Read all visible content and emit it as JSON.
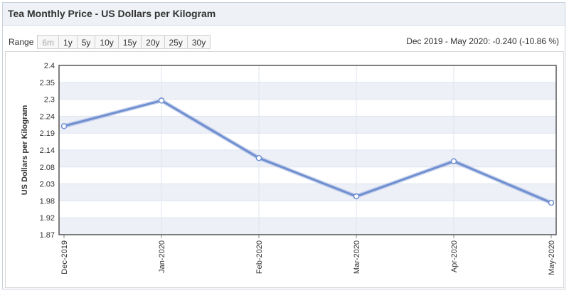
{
  "header": {
    "title": "Tea Monthly Price - US Dollars per Kilogram"
  },
  "range": {
    "label": "Range",
    "buttons": [
      {
        "label": "6m",
        "disabled": true
      },
      {
        "label": "1y",
        "disabled": false
      },
      {
        "label": "5y",
        "disabled": false
      },
      {
        "label": "10y",
        "disabled": false
      },
      {
        "label": "15y",
        "disabled": false
      },
      {
        "label": "20y",
        "disabled": false
      },
      {
        "label": "25y",
        "disabled": false
      },
      {
        "label": "30y",
        "disabled": false
      }
    ]
  },
  "change_summary": "Dec 2019 - May 2020: -0.240 (-10.86 %)",
  "colors": {
    "line": "#6f8fd0",
    "band": "#eef0f8",
    "grid": "#dde4ee",
    "border": "#555555"
  },
  "chart_data": {
    "type": "line",
    "title": "Tea Monthly Price - US Dollars per Kilogram",
    "xlabel": "",
    "ylabel": "US Dollars per Kilogram",
    "categories": [
      "Dec-2019",
      "Jan-2020",
      "Feb-2020",
      "Mar-2020",
      "Apr-2020",
      "May-2020"
    ],
    "y_ticks": [
      "1.87",
      "1.92",
      "1.98",
      "2.03",
      "2.08",
      "2.14",
      "2.19",
      "2.24",
      "2.3",
      "2.35",
      "2.4"
    ],
    "ylim": [
      1.87,
      2.4
    ],
    "series": [
      {
        "name": "Tea",
        "values": [
          2.21,
          2.29,
          2.11,
          1.99,
          2.1,
          1.97
        ]
      }
    ]
  }
}
